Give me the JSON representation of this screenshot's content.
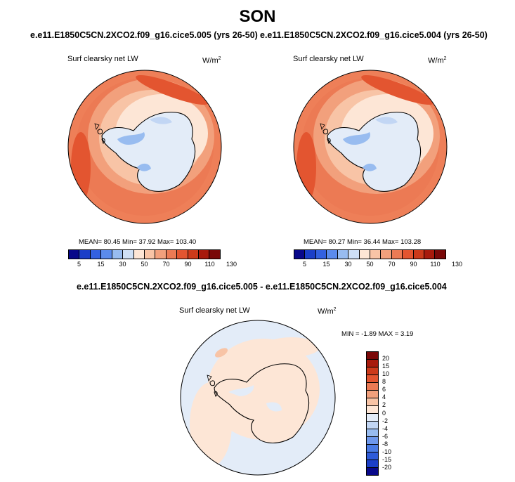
{
  "season": "SON",
  "panels": [
    {
      "case_title": "e.e11.E1850C5CN.2XCO2.f09_g16.cice5.005 (yrs 26-50)",
      "field_label": "Surf clearsky net LW",
      "units_base": "W/m",
      "units_exp": "2",
      "stats": "MEAN=  80.45  Min=  37.92  Max= 103.40"
    },
    {
      "case_title": "e.e11.E1850C5CN.2XCO2.f09_g16.cice5.004 (yrs 26-50)",
      "field_label": "Surf clearsky net LW",
      "units_base": "W/m",
      "units_exp": "2",
      "stats": "MEAN=  80.27  Min=  36.44  Max= 103.28"
    }
  ],
  "diff_panel": {
    "case_title": "e.e11.E1850C5CN.2XCO2.f09_g16.cice5.005 - e.e11.E1850C5CN.2XCO2.f09_g16.cice5.004",
    "field_label": "Surf clearsky net LW",
    "units_base": "W/m",
    "units_exp": "2",
    "stats": "MIN =  -1.89  MAX =   3.19"
  },
  "abs_colorbar": {
    "colors": [
      "#08088a",
      "#1b3fc8",
      "#3361e0",
      "#5b8bec",
      "#98bcf0",
      "#cfe0f6",
      "#fde6d6",
      "#f8c4a6",
      "#f2a07c",
      "#ec7a54",
      "#e35530",
      "#cc3a1a",
      "#a81a0c",
      "#7a0808"
    ],
    "labels": [
      "5",
      "15",
      "30",
      "50",
      "70",
      "90",
      "110",
      "130"
    ]
  },
  "diff_colorbar": {
    "colors": [
      "#08088a",
      "#1b3fc8",
      "#2e5bd8",
      "#4a7be4",
      "#6e98ec",
      "#98bcf0",
      "#c2d6f4",
      "#e3ecf8",
      "#fde6d6",
      "#f8c4a6",
      "#f2a07c",
      "#ec7a54",
      "#e35530",
      "#cc3a1a",
      "#a81a0c",
      "#7a0808"
    ],
    "labels": [
      "20",
      "15",
      "10",
      "8",
      "6",
      "4",
      "2",
      "0",
      "-2",
      "-4",
      "-6",
      "-8",
      "-10",
      "-15",
      "-20"
    ]
  }
}
